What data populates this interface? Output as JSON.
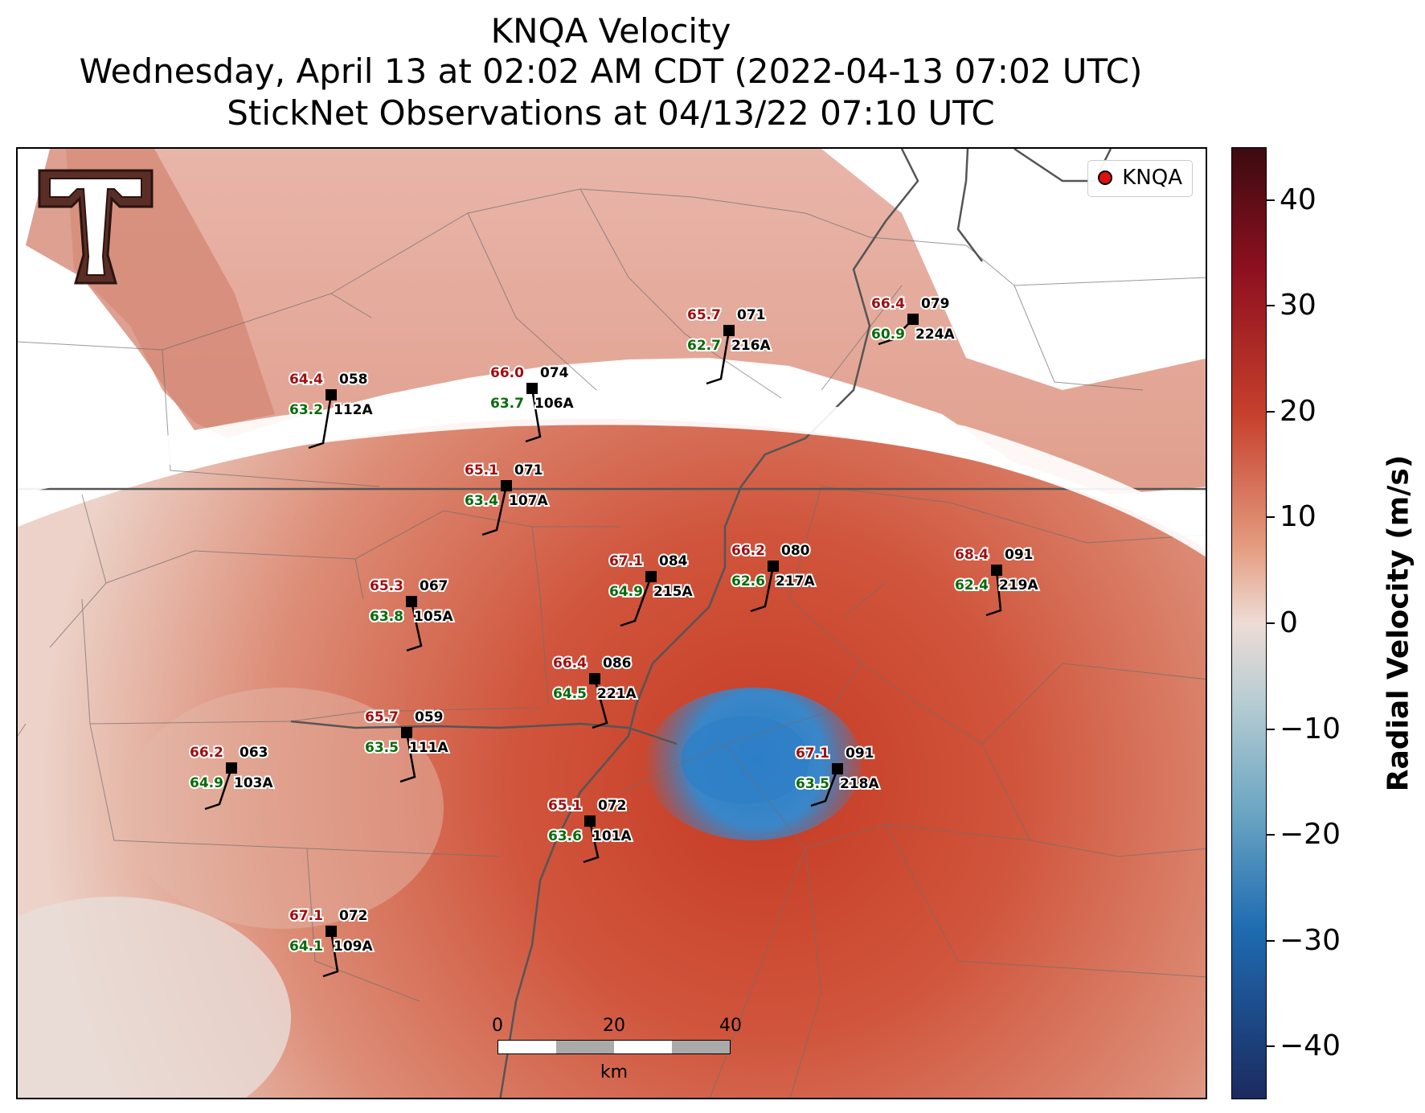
{
  "title": {
    "line1": "KNQA Velocity",
    "line2": "Wednesday, April 13 at 02:02 AM CDT (2022-04-13 07:02 UTC)",
    "line3": "StickNet Observations at 04/13/22 07:10 UTC"
  },
  "legend": {
    "label": "KNQA",
    "marker_color": "#e01010"
  },
  "colorbar": {
    "label": "Radial Velocity (m/s)",
    "min": -45,
    "max": 45,
    "ticks": [
      "40",
      "30",
      "20",
      "10",
      "0",
      "−10",
      "−20",
      "−30",
      "−40"
    ],
    "tick_values": [
      40,
      30,
      20,
      10,
      0,
      -10,
      -20,
      -30,
      -40
    ]
  },
  "scalebar": {
    "labels": [
      "0",
      "20",
      "40"
    ],
    "unit": "km"
  },
  "logo": {
    "name": "texas-tech-double-t-logo"
  },
  "colors": {
    "temperature": "#a10e10",
    "dewpoint": "#0a6b0a",
    "station": "#000000"
  },
  "stations": [
    {
      "id": "112A",
      "temp": "64.4",
      "dew": "63.2",
      "dir": "058"
    },
    {
      "id": "106A",
      "temp": "66.0",
      "dew": "63.7",
      "dir": "074"
    },
    {
      "id": "216A",
      "temp": "65.7",
      "dew": "62.7",
      "dir": "071"
    },
    {
      "id": "224A",
      "temp": "66.4",
      "dew": "60.9",
      "dir": "079"
    },
    {
      "id": "107A",
      "temp": "65.1",
      "dew": "63.4",
      "dir": "071"
    },
    {
      "id": "215A",
      "temp": "67.1",
      "dew": "64.9",
      "dir": "084"
    },
    {
      "id": "217A",
      "temp": "66.2",
      "dew": "62.6",
      "dir": "080"
    },
    {
      "id": "219A",
      "temp": "68.4",
      "dew": "62.4",
      "dir": "091"
    },
    {
      "id": "105A",
      "temp": "65.3",
      "dew": "63.8",
      "dir": "067"
    },
    {
      "id": "221A",
      "temp": "66.4",
      "dew": "64.5",
      "dir": "086"
    },
    {
      "id": "111A",
      "temp": "65.7",
      "dew": "63.5",
      "dir": "059"
    },
    {
      "id": "103A",
      "temp": "66.2",
      "dew": "64.9",
      "dir": "063"
    },
    {
      "id": "218A",
      "temp": "67.1",
      "dew": "63.5",
      "dir": "091"
    },
    {
      "id": "101A",
      "temp": "65.1",
      "dew": "63.6",
      "dir": "072"
    },
    {
      "id": "109A",
      "temp": "67.1",
      "dew": "64.1",
      "dir": "072"
    }
  ]
}
